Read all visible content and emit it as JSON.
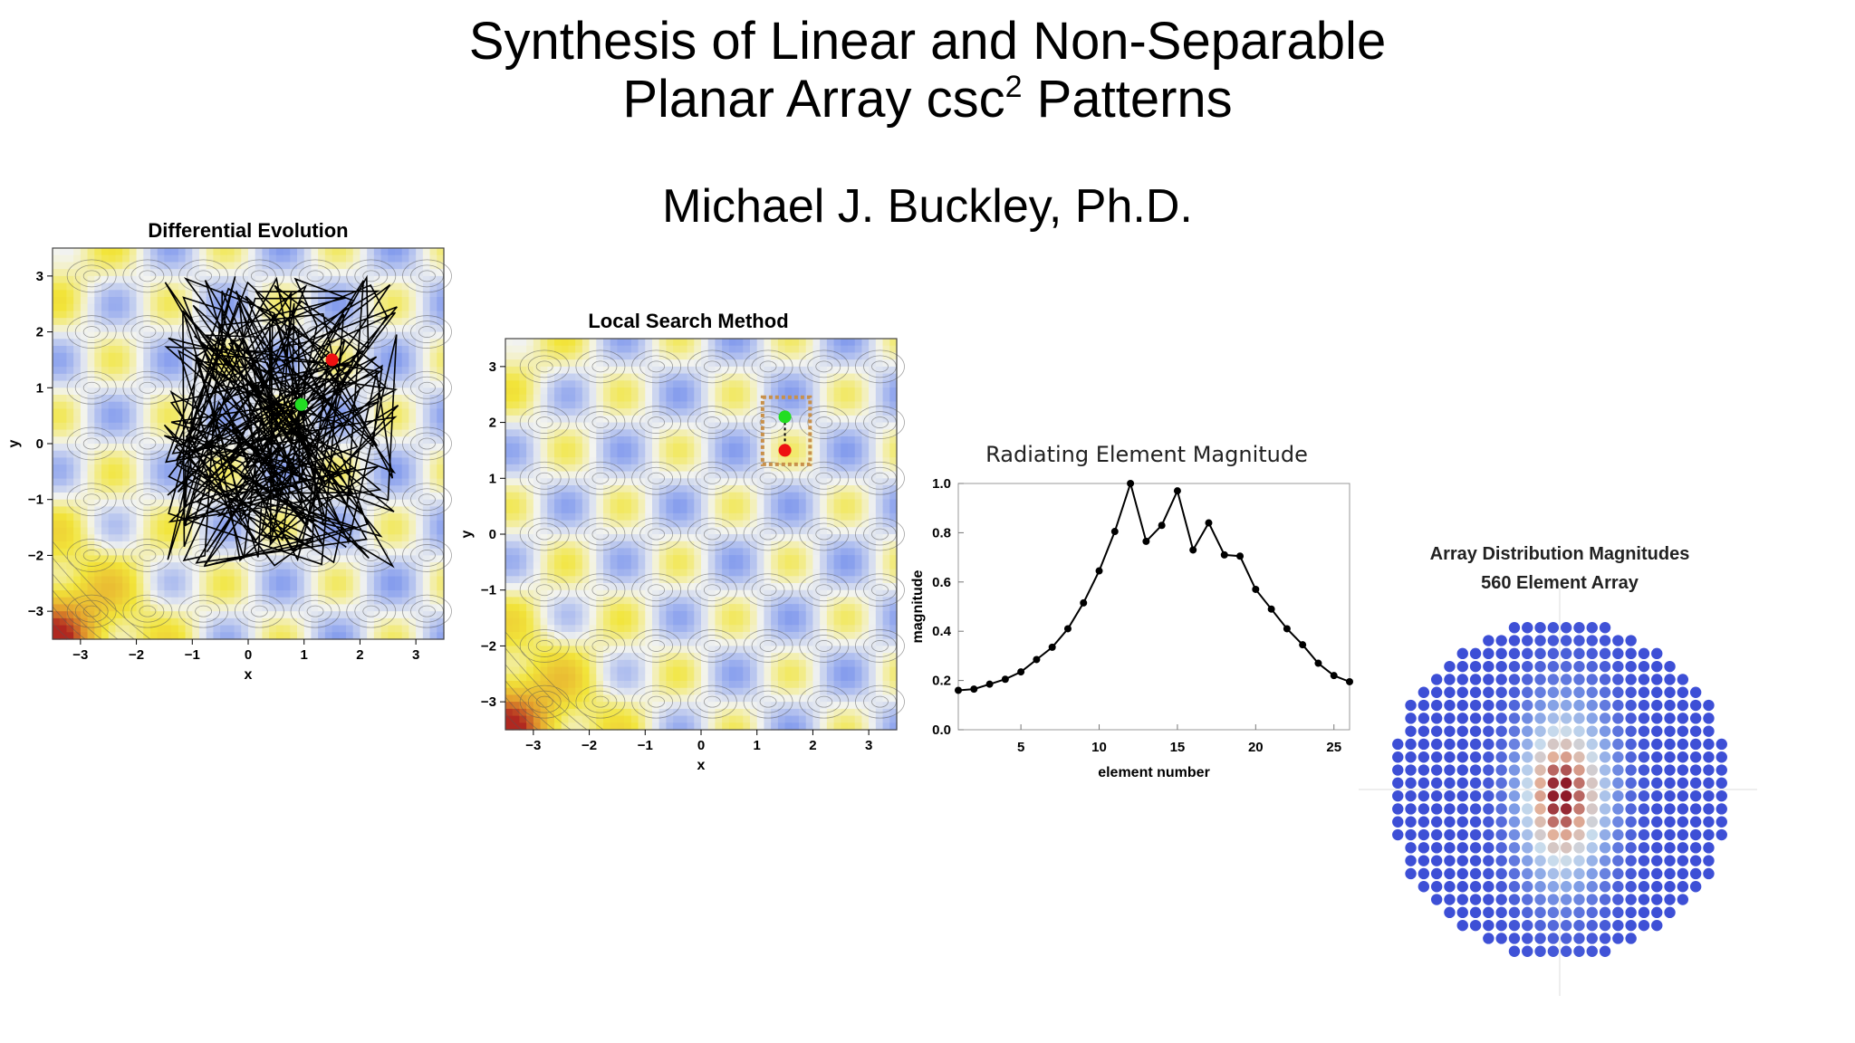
{
  "slide": {
    "title_line1": "Synthesis of Linear and Non-Separable",
    "title_line2_a": "Planar Array csc",
    "title_line2_sup": "2",
    "title_line2_b": " Patterns",
    "author": "Michael J. Buckley, Ph.D."
  },
  "chart_data": [
    {
      "type": "heatmap",
      "title": "Differential Evolution",
      "xlabel": "x",
      "ylabel": "y",
      "xlim": [
        -3.5,
        3.5
      ],
      "ylim": [
        -3.5,
        3.5
      ],
      "x_ticks": [
        "−3",
        "−2",
        "−1",
        "0",
        "1",
        "2",
        "3"
      ],
      "y_ticks": [
        "3",
        "2",
        "1",
        "0",
        "−1",
        "−2",
        "−3"
      ],
      "points": [
        {
          "name": "green",
          "x": 0.95,
          "y": 0.7,
          "color": "#22dd22"
        },
        {
          "name": "red",
          "x": 1.5,
          "y": 1.5,
          "color": "#ee1111"
        }
      ],
      "search_path_extent": {
        "x": [
          -1.5,
          2.8
        ],
        "y": [
          -2.2,
          3.0
        ]
      },
      "colors": {
        "low": "#3f62e6",
        "mid": "#f3f4f0",
        "high": "#f2e53a",
        "peak": "#b02820"
      }
    },
    {
      "type": "heatmap",
      "title": "Local Search Method",
      "xlabel": "x",
      "ylabel": "y",
      "xlim": [
        -3.5,
        3.5
      ],
      "ylim": [
        -3.5,
        3.5
      ],
      "x_ticks": [
        "−3",
        "−2",
        "−1",
        "0",
        "1",
        "2",
        "3"
      ],
      "y_ticks": [
        "3",
        "2",
        "1",
        "0",
        "−1",
        "−2",
        "−3"
      ],
      "points": [
        {
          "name": "green",
          "x": 1.5,
          "y": 2.1,
          "color": "#22dd22"
        },
        {
          "name": "red",
          "x": 1.5,
          "y": 1.5,
          "color": "#ee1111"
        }
      ],
      "search_box": {
        "x": [
          1.1,
          1.95
        ],
        "y": [
          1.25,
          2.45
        ],
        "color": "#c8904a"
      }
    },
    {
      "type": "line",
      "title": "Radiating Element Magnitude",
      "xlabel": "element number",
      "ylabel": "magnitude",
      "xlim": [
        1,
        26
      ],
      "ylim": [
        0,
        1
      ],
      "x_ticks": [
        "5",
        "10",
        "15",
        "20",
        "25"
      ],
      "y_ticks": [
        "1.0",
        "0.8",
        "0.6",
        "0.4",
        "0.2",
        "0.0"
      ],
      "x": [
        1,
        2,
        3,
        4,
        5,
        6,
        7,
        8,
        9,
        10,
        11,
        12,
        13,
        14,
        15,
        16,
        17,
        18,
        19,
        20,
        21,
        22,
        23,
        24,
        25,
        26
      ],
      "y": [
        0.16,
        0.165,
        0.185,
        0.205,
        0.235,
        0.285,
        0.335,
        0.41,
        0.515,
        0.645,
        0.805,
        1.0,
        0.765,
        0.83,
        0.97,
        0.73,
        0.84,
        0.71,
        0.705,
        0.57,
        0.49,
        0.41,
        0.345,
        0.27,
        0.22,
        0.195
      ]
    },
    {
      "type": "heatmap",
      "title_line1": "Array Distribution Magnitudes",
      "title_line2": "560 Element Array",
      "elements": 560,
      "colors": {
        "edge": "#3d4fd6",
        "mid": "#b9d3ec",
        "warm": "#e3b9a0",
        "peak": "#8e1a28"
      }
    }
  ]
}
